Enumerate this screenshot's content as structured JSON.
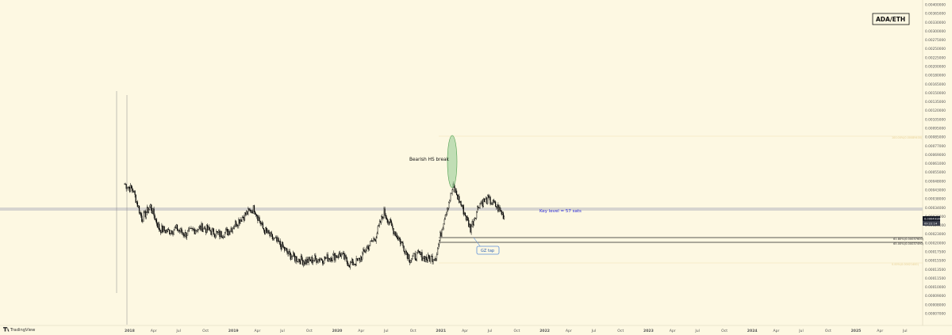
{
  "app": {
    "watermark": "TradingView"
  },
  "chart_data": {
    "type": "candlestick",
    "symbol_badge": "ADA/ETH",
    "y_axis": {
      "ticks": [
        "0.00400000",
        "0.00365000",
        "0.00330000",
        "0.00300000",
        "0.00275000",
        "0.00250000",
        "0.00225000",
        "0.00200000",
        "0.00180000",
        "0.00165000",
        "0.00150000",
        "0.00135000",
        "0.00120000",
        "0.00105000",
        "0.00095000",
        "0.00085000",
        "0.00077000",
        "0.00069000",
        "0.00061000",
        "0.00055000",
        "0.00048000",
        "0.00043000",
        "0.00038000",
        "0.00034000",
        "0.00030000",
        "0.00026000",
        "0.00023000",
        "0.00020000",
        "0.00017500",
        "0.00015500",
        "0.00013500",
        "0.00011500",
        "0.00010000",
        "0.00009000",
        "0.00008000",
        "0.00007000"
      ]
    },
    "x_axis": {
      "ticks": [
        "2018",
        "Apr",
        "Jul",
        "Oct",
        "2019",
        "Apr",
        "Jul",
        "Oct",
        "2020",
        "Apr",
        "Jul",
        "Oct",
        "2021",
        "Apr",
        "Jul",
        "Oct",
        "2022",
        "Apr",
        "Jul",
        "Oct",
        "2023",
        "Apr",
        "Jul",
        "Oct",
        "2024",
        "Apr",
        "Jul",
        "Oct",
        "2025",
        "Apr",
        "Jul"
      ]
    },
    "series": [
      {
        "values_approx": [
          [
            "2018-01",
            0.0009
          ],
          [
            "2018-02",
            0.0008
          ],
          [
            "2018-03",
            0.00048
          ],
          [
            "2018-04",
            0.0006
          ],
          [
            "2018-05",
            0.0004
          ],
          [
            "2018-06",
            0.00038
          ],
          [
            "2018-07",
            0.0004
          ],
          [
            "2018-08",
            0.00036
          ],
          [
            "2018-09",
            0.00039
          ],
          [
            "2018-10",
            0.00041
          ],
          [
            "2018-11",
            0.00038
          ],
          [
            "2018-12",
            0.00036
          ],
          [
            "2019-01",
            0.00038
          ],
          [
            "2019-02",
            0.00045
          ],
          [
            "2019-03",
            0.00052
          ],
          [
            "2019-04",
            0.00058
          ],
          [
            "2019-05",
            0.0004
          ],
          [
            "2019-06",
            0.00034
          ],
          [
            "2019-07",
            0.0003
          ],
          [
            "2019-08",
            0.00025
          ],
          [
            "2019-09",
            0.00023
          ],
          [
            "2019-10",
            0.00022
          ],
          [
            "2019-11",
            0.00023
          ],
          [
            "2019-12",
            0.00023
          ],
          [
            "2020-01",
            0.00024
          ],
          [
            "2020-02",
            0.00025
          ],
          [
            "2020-03",
            0.00021
          ],
          [
            "2020-04",
            0.00022
          ],
          [
            "2020-05",
            0.00028
          ],
          [
            "2020-06",
            0.00034
          ],
          [
            "2020-07",
            0.00054
          ],
          [
            "2020-08",
            0.0004
          ],
          [
            "2020-09",
            0.00031
          ],
          [
            "2020-10",
            0.00023
          ],
          [
            "2020-11",
            0.00025
          ],
          [
            "2020-12",
            0.00023
          ],
          [
            "2021-01",
            0.00024
          ],
          [
            "2021-02",
            0.0005
          ],
          [
            "2021-03",
            0.00085
          ],
          [
            "2021-04",
            0.0006
          ],
          [
            "2021-05",
            0.0004
          ],
          [
            "2021-06",
            0.00063
          ],
          [
            "2021-07",
            0.00068
          ],
          [
            "2021-08",
            0.0006
          ],
          [
            "2021-09",
            0.00049
          ]
        ]
      }
    ],
    "price_badge": {
      "value": "0.00049100",
      "time": "09:22:14",
      "color": "#131722"
    },
    "horizontal_levels": [
      {
        "label": "Key level = 57 sats",
        "value": 0.00057,
        "color": "#c8c8c8"
      },
      {
        "label": "61.80%(0.00037600)",
        "value": 0.000376
      },
      {
        "label": "65.00%(0.00037490)",
        "value": 0.0003749
      }
    ],
    "fib_faint_levels": [
      {
        "label": "100.00%(0.00089400)",
        "value": 0.000894
      },
      {
        "label": "0.00%(0.00021400)",
        "value": 0.000214
      }
    ],
    "annotations": {
      "hs_label": "Bearish HS break",
      "gz_label": "GZ tap",
      "hs_color": "#8fc98f",
      "gz_box_color": "#5b8fd9"
    },
    "colors": {
      "background": "#fdf8e2",
      "candle": "#000000",
      "key_text": "#2b2bd9"
    }
  }
}
